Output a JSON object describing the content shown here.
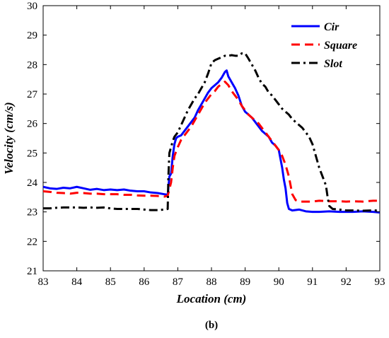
{
  "caption": "(b)",
  "chart_data": {
    "type": "line",
    "title": "",
    "xlabel": "Location (cm)",
    "ylabel": "Velocity (cm/s)",
    "xlim": [
      83,
      93
    ],
    "ylim": [
      21,
      30
    ],
    "xticks": [
      83,
      84,
      85,
      86,
      87,
      88,
      89,
      90,
      91,
      92,
      93
    ],
    "yticks": [
      21,
      22,
      23,
      24,
      25,
      26,
      27,
      28,
      29,
      30
    ],
    "grid": false,
    "legend_position": "top-right",
    "series": [
      {
        "name": "Cir",
        "color": "#0000ff",
        "dash": "solid",
        "points": [
          [
            83.0,
            23.85
          ],
          [
            83.2,
            23.8
          ],
          [
            83.4,
            23.78
          ],
          [
            83.6,
            23.82
          ],
          [
            83.8,
            23.8
          ],
          [
            84.0,
            23.85
          ],
          [
            84.2,
            23.8
          ],
          [
            84.4,
            23.75
          ],
          [
            84.6,
            23.78
          ],
          [
            84.8,
            23.74
          ],
          [
            85.0,
            23.76
          ],
          [
            85.2,
            23.74
          ],
          [
            85.4,
            23.76
          ],
          [
            85.6,
            23.72
          ],
          [
            85.8,
            23.7
          ],
          [
            86.0,
            23.7
          ],
          [
            86.2,
            23.66
          ],
          [
            86.4,
            23.64
          ],
          [
            86.6,
            23.6
          ],
          [
            86.7,
            23.58
          ],
          [
            86.75,
            24.2
          ],
          [
            86.8,
            24.3
          ],
          [
            86.85,
            24.9
          ],
          [
            86.9,
            25.3
          ],
          [
            86.95,
            25.5
          ],
          [
            87.0,
            25.55
          ],
          [
            87.1,
            25.6
          ],
          [
            87.2,
            25.75
          ],
          [
            87.3,
            25.9
          ],
          [
            87.4,
            26.05
          ],
          [
            87.5,
            26.2
          ],
          [
            87.6,
            26.45
          ],
          [
            87.7,
            26.65
          ],
          [
            87.8,
            26.85
          ],
          [
            87.9,
            27.05
          ],
          [
            88.0,
            27.2
          ],
          [
            88.1,
            27.3
          ],
          [
            88.2,
            27.4
          ],
          [
            88.3,
            27.55
          ],
          [
            88.4,
            27.75
          ],
          [
            88.45,
            27.8
          ],
          [
            88.5,
            27.6
          ],
          [
            88.6,
            27.4
          ],
          [
            88.7,
            27.2
          ],
          [
            88.8,
            26.95
          ],
          [
            88.9,
            26.6
          ],
          [
            89.0,
            26.4
          ],
          [
            89.1,
            26.3
          ],
          [
            89.2,
            26.2
          ],
          [
            89.3,
            26.05
          ],
          [
            89.4,
            25.9
          ],
          [
            89.5,
            25.75
          ],
          [
            89.6,
            25.65
          ],
          [
            89.7,
            25.55
          ],
          [
            89.8,
            25.35
          ],
          [
            89.9,
            25.25
          ],
          [
            90.0,
            25.1
          ],
          [
            90.05,
            24.8
          ],
          [
            90.1,
            24.5
          ],
          [
            90.15,
            24.1
          ],
          [
            90.2,
            23.8
          ],
          [
            90.25,
            23.3
          ],
          [
            90.3,
            23.1
          ],
          [
            90.4,
            23.05
          ],
          [
            90.6,
            23.08
          ],
          [
            90.8,
            23.02
          ],
          [
            91.0,
            23.0
          ],
          [
            91.2,
            23.0
          ],
          [
            91.5,
            23.02
          ],
          [
            91.8,
            23.0
          ],
          [
            92.0,
            23.0
          ],
          [
            92.2,
            23.0
          ],
          [
            92.5,
            23.02
          ],
          [
            92.8,
            23.0
          ],
          [
            93.0,
            22.98
          ]
        ]
      },
      {
        "name": "Square",
        "color": "#ff0000",
        "dash": "12,7",
        "points": [
          [
            83.0,
            23.7
          ],
          [
            83.2,
            23.68
          ],
          [
            83.4,
            23.65
          ],
          [
            83.6,
            23.64
          ],
          [
            83.8,
            23.62
          ],
          [
            84.0,
            23.65
          ],
          [
            84.2,
            23.64
          ],
          [
            84.4,
            23.62
          ],
          [
            84.6,
            23.62
          ],
          [
            84.8,
            23.6
          ],
          [
            85.0,
            23.6
          ],
          [
            85.2,
            23.6
          ],
          [
            85.4,
            23.58
          ],
          [
            85.6,
            23.58
          ],
          [
            85.8,
            23.56
          ],
          [
            86.0,
            23.55
          ],
          [
            86.2,
            23.55
          ],
          [
            86.4,
            23.54
          ],
          [
            86.6,
            23.52
          ],
          [
            86.7,
            23.55
          ],
          [
            86.8,
            24.0
          ],
          [
            86.85,
            24.5
          ],
          [
            86.9,
            24.9
          ],
          [
            87.0,
            25.2
          ],
          [
            87.1,
            25.45
          ],
          [
            87.2,
            25.6
          ],
          [
            87.3,
            25.75
          ],
          [
            87.4,
            25.9
          ],
          [
            87.5,
            26.1
          ],
          [
            87.6,
            26.3
          ],
          [
            87.7,
            26.5
          ],
          [
            87.8,
            26.7
          ],
          [
            87.9,
            26.85
          ],
          [
            88.0,
            27.0
          ],
          [
            88.1,
            27.1
          ],
          [
            88.2,
            27.25
          ],
          [
            88.3,
            27.35
          ],
          [
            88.4,
            27.42
          ],
          [
            88.5,
            27.3
          ],
          [
            88.6,
            27.1
          ],
          [
            88.7,
            26.95
          ],
          [
            88.8,
            26.8
          ],
          [
            88.9,
            26.6
          ],
          [
            89.0,
            26.45
          ],
          [
            89.1,
            26.3
          ],
          [
            89.2,
            26.2
          ],
          [
            89.3,
            26.1
          ],
          [
            89.4,
            26.0
          ],
          [
            89.5,
            25.85
          ],
          [
            89.6,
            25.7
          ],
          [
            89.7,
            25.55
          ],
          [
            89.8,
            25.4
          ],
          [
            89.9,
            25.25
          ],
          [
            90.0,
            25.1
          ],
          [
            90.1,
            24.9
          ],
          [
            90.2,
            24.6
          ],
          [
            90.3,
            24.2
          ],
          [
            90.35,
            23.9
          ],
          [
            90.4,
            23.6
          ],
          [
            90.5,
            23.4
          ],
          [
            90.6,
            23.35
          ],
          [
            90.8,
            23.35
          ],
          [
            91.0,
            23.35
          ],
          [
            91.2,
            23.38
          ],
          [
            91.5,
            23.36
          ],
          [
            91.8,
            23.36
          ],
          [
            92.0,
            23.35
          ],
          [
            92.2,
            23.36
          ],
          [
            92.5,
            23.35
          ],
          [
            92.8,
            23.38
          ],
          [
            93.0,
            23.38
          ]
        ]
      },
      {
        "name": "Slot",
        "color": "#000000",
        "dash": "12,5,3,5",
        "points": [
          [
            83.0,
            23.12
          ],
          [
            83.2,
            23.12
          ],
          [
            83.4,
            23.14
          ],
          [
            83.6,
            23.15
          ],
          [
            83.8,
            23.15
          ],
          [
            84.0,
            23.15
          ],
          [
            84.2,
            23.14
          ],
          [
            84.4,
            23.15
          ],
          [
            84.6,
            23.14
          ],
          [
            84.8,
            23.15
          ],
          [
            85.0,
            23.12
          ],
          [
            85.2,
            23.1
          ],
          [
            85.4,
            23.1
          ],
          [
            85.6,
            23.1
          ],
          [
            85.8,
            23.1
          ],
          [
            86.0,
            23.08
          ],
          [
            86.2,
            23.06
          ],
          [
            86.4,
            23.06
          ],
          [
            86.6,
            23.08
          ],
          [
            86.7,
            23.1
          ],
          [
            86.72,
            24.2
          ],
          [
            86.75,
            25.0
          ],
          [
            86.8,
            25.2
          ],
          [
            86.85,
            25.4
          ],
          [
            86.9,
            25.55
          ],
          [
            87.0,
            25.7
          ],
          [
            87.1,
            25.95
          ],
          [
            87.2,
            26.2
          ],
          [
            87.3,
            26.45
          ],
          [
            87.4,
            26.65
          ],
          [
            87.5,
            26.85
          ],
          [
            87.6,
            27.0
          ],
          [
            87.7,
            27.2
          ],
          [
            87.8,
            27.4
          ],
          [
            87.9,
            27.7
          ],
          [
            88.0,
            28.05
          ],
          [
            88.1,
            28.15
          ],
          [
            88.2,
            28.2
          ],
          [
            88.3,
            28.25
          ],
          [
            88.4,
            28.3
          ],
          [
            88.5,
            28.3
          ],
          [
            88.6,
            28.32
          ],
          [
            88.7,
            28.3
          ],
          [
            88.8,
            28.3
          ],
          [
            88.9,
            28.38
          ],
          [
            89.0,
            28.38
          ],
          [
            89.1,
            28.2
          ],
          [
            89.2,
            28.0
          ],
          [
            89.3,
            27.8
          ],
          [
            89.4,
            27.55
          ],
          [
            89.5,
            27.35
          ],
          [
            89.6,
            27.25
          ],
          [
            89.7,
            27.05
          ],
          [
            89.8,
            26.95
          ],
          [
            89.9,
            26.8
          ],
          [
            90.0,
            26.65
          ],
          [
            90.1,
            26.5
          ],
          [
            90.2,
            26.4
          ],
          [
            90.3,
            26.3
          ],
          [
            90.4,
            26.15
          ],
          [
            90.5,
            26.05
          ],
          [
            90.6,
            25.95
          ],
          [
            90.7,
            25.85
          ],
          [
            90.8,
            25.7
          ],
          [
            90.9,
            25.55
          ],
          [
            91.0,
            25.3
          ],
          [
            91.1,
            24.9
          ],
          [
            91.2,
            24.5
          ],
          [
            91.3,
            24.2
          ],
          [
            91.4,
            23.9
          ],
          [
            91.45,
            23.5
          ],
          [
            91.5,
            23.2
          ],
          [
            91.6,
            23.1
          ],
          [
            91.8,
            23.08
          ],
          [
            92.0,
            23.05
          ],
          [
            92.2,
            23.05
          ],
          [
            92.5,
            23.04
          ],
          [
            92.8,
            23.05
          ],
          [
            93.0,
            23.05
          ]
        ]
      }
    ]
  }
}
